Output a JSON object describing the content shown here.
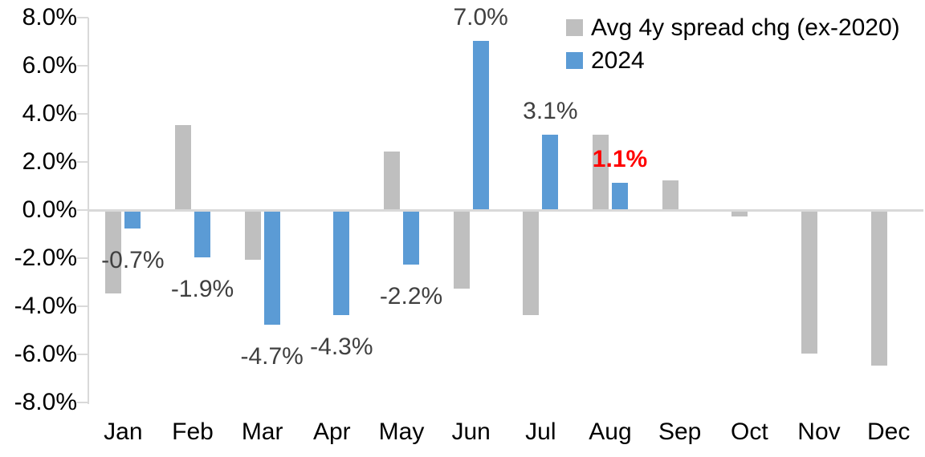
{
  "chart_data": {
    "type": "bar",
    "title": "",
    "xlabel": "",
    "ylabel": "",
    "categories": [
      "Jan",
      "Feb",
      "Mar",
      "Apr",
      "May",
      "Jun",
      "Jul",
      "Aug",
      "Sep",
      "Oct",
      "Nov",
      "Dec"
    ],
    "series": [
      {
        "key": "avg4y",
        "name": "Avg 4y spread chg (ex-2020)",
        "color": "#BFBFBF",
        "values": [
          -3.4,
          3.5,
          -2.0,
          0.0,
          2.4,
          -3.2,
          -4.3,
          3.1,
          1.2,
          -0.2,
          -5.9,
          -6.4
        ]
      },
      {
        "key": "2024",
        "name": "2024",
        "color": "#5B9BD5",
        "values": [
          -0.7,
          -1.9,
          -4.7,
          -4.3,
          -2.2,
          7.0,
          3.1,
          1.1,
          null,
          null,
          null,
          null
        ],
        "data_labels": [
          {
            "text": "-0.7%",
            "color": "#404040",
            "bold": false
          },
          {
            "text": "-1.9%",
            "color": "#404040",
            "bold": false
          },
          {
            "text": "-4.7%",
            "color": "#404040",
            "bold": false
          },
          {
            "text": "-4.3%",
            "color": "#404040",
            "bold": false
          },
          {
            "text": "-2.2%",
            "color": "#404040",
            "bold": false
          },
          {
            "text": "7.0%",
            "color": "#404040",
            "bold": false
          },
          {
            "text": "3.1%",
            "color": "#404040",
            "bold": false
          },
          {
            "text": "1.1%",
            "color": "#FF0000",
            "bold": true
          },
          null,
          null,
          null,
          null
        ]
      }
    ],
    "ylim": [
      -8,
      8
    ],
    "y_ticks": [
      "8.0%",
      "6.0%",
      "4.0%",
      "2.0%",
      "0.0%",
      "-2.0%",
      "-4.0%",
      "-6.0%",
      "-8.0%"
    ],
    "grid": false,
    "legend_position": "top-right",
    "axis_color": "#D9D9D9"
  }
}
